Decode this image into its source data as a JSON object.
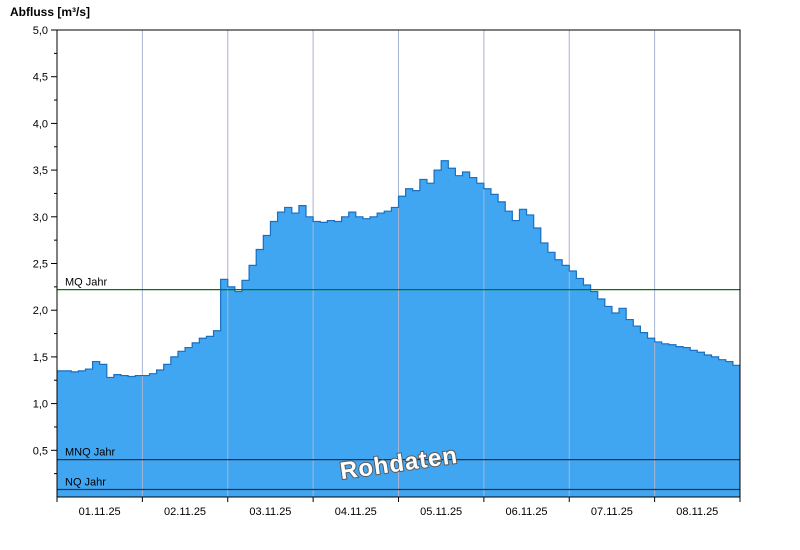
{
  "title": "Abfluss [m³/s]",
  "watermark": "Rohdaten",
  "chart_data": {
    "type": "area",
    "title": "Abfluss [m³/s]",
    "ylabel": "Abfluss [m³/s]",
    "xlabel": "",
    "ylim": [
      0,
      5
    ],
    "ytick_step": 0.5,
    "ytick_labels": [
      "5,0",
      "4,5",
      "4,0",
      "3,5",
      "3,0",
      "2,5",
      "2,0",
      "1,5",
      "1,0",
      "0,5"
    ],
    "x_categories": [
      "01.11.25",
      "02.11.25",
      "03.11.25",
      "04.11.25",
      "05.11.25",
      "06.11.25",
      "07.11.25",
      "08.11.25"
    ],
    "samples_per_day": 12,
    "values": [
      1.35,
      1.35,
      1.34,
      1.35,
      1.37,
      1.45,
      1.42,
      1.28,
      1.31,
      1.3,
      1.29,
      1.3,
      1.3,
      1.32,
      1.36,
      1.42,
      1.5,
      1.56,
      1.6,
      1.65,
      1.7,
      1.72,
      1.78,
      2.33,
      2.25,
      2.2,
      2.32,
      2.48,
      2.65,
      2.8,
      2.95,
      3.05,
      3.1,
      3.04,
      3.12,
      3.0,
      2.95,
      2.94,
      2.96,
      2.95,
      3.0,
      3.05,
      3.0,
      2.98,
      3.0,
      3.04,
      3.06,
      3.1,
      3.22,
      3.3,
      3.28,
      3.4,
      3.36,
      3.5,
      3.6,
      3.52,
      3.44,
      3.48,
      3.42,
      3.36,
      3.3,
      3.24,
      3.16,
      3.06,
      2.96,
      3.08,
      3.02,
      2.88,
      2.72,
      2.62,
      2.54,
      2.48,
      2.42,
      2.34,
      2.27,
      2.2,
      2.12,
      2.04,
      1.97,
      2.02,
      1.9,
      1.83,
      1.76,
      1.7,
      1.66,
      1.64,
      1.63,
      1.61,
      1.6,
      1.57,
      1.55,
      1.52,
      1.5,
      1.47,
      1.45,
      1.41
    ],
    "reference_lines": [
      {
        "label": "MQ Jahr",
        "value": 2.22,
        "color": "#007a00"
      },
      {
        "label": "MNQ Jahr",
        "value": 0.4,
        "color": "#303030"
      },
      {
        "label": "NQ Jahr",
        "value": 0.08,
        "color": "#303030"
      }
    ],
    "colors": {
      "area_fill": "#40a6f2",
      "area_line": "#1a6fc0",
      "grid": "#a8b4d4",
      "axis": "#000000",
      "label": "#000000",
      "watermark_fill": "#ffffff",
      "watermark_outline": "#5a5a5a"
    },
    "legend": "none",
    "grid": "vertical-day-lines-only"
  }
}
